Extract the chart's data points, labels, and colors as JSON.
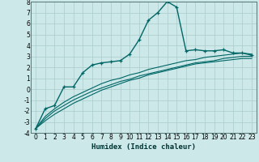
{
  "xlabel": "Humidex (Indice chaleur)",
  "background_color": "#cce8e8",
  "grid_color": "#aacccc",
  "line_color": "#006666",
  "xlim": [
    -0.5,
    23.5
  ],
  "ylim": [
    -4,
    8
  ],
  "xticks": [
    0,
    1,
    2,
    3,
    4,
    5,
    6,
    7,
    8,
    9,
    10,
    11,
    12,
    13,
    14,
    15,
    16,
    17,
    18,
    19,
    20,
    21,
    22,
    23
  ],
  "yticks": [
    -4,
    -3,
    -2,
    -1,
    0,
    1,
    2,
    3,
    4,
    5,
    6,
    7,
    8
  ],
  "series": [
    {
      "x": [
        0,
        1,
        2,
        3,
        4,
        5,
        6,
        7,
        8,
        9,
        10,
        11,
        12,
        13,
        14,
        15,
        16,
        17,
        18,
        19,
        20,
        21,
        22,
        23
      ],
      "y": [
        -3.6,
        -1.8,
        -1.5,
        0.2,
        0.2,
        1.5,
        2.2,
        2.4,
        2.5,
        2.6,
        3.2,
        4.5,
        6.3,
        7.0,
        8.0,
        7.5,
        3.5,
        3.6,
        3.5,
        3.5,
        3.6,
        3.3,
        3.3,
        3.1
      ],
      "marker": true,
      "lw": 1.0
    },
    {
      "x": [
        0,
        1,
        2,
        3,
        4,
        5,
        6,
        7,
        8,
        9,
        10,
        11,
        12,
        13,
        14,
        15,
        16,
        17,
        18,
        19,
        20,
        21,
        22,
        23
      ],
      "y": [
        -3.6,
        -2.5,
        -1.8,
        -1.2,
        -0.7,
        -0.3,
        0.1,
        0.5,
        0.8,
        1.0,
        1.3,
        1.5,
        1.8,
        2.0,
        2.2,
        2.4,
        2.6,
        2.7,
        2.9,
        3.0,
        3.1,
        3.2,
        3.3,
        3.2
      ],
      "marker": false,
      "lw": 0.8
    },
    {
      "x": [
        0,
        1,
        2,
        3,
        4,
        5,
        6,
        7,
        8,
        9,
        10,
        11,
        12,
        13,
        14,
        15,
        16,
        17,
        18,
        19,
        20,
        21,
        22,
        23
      ],
      "y": [
        -3.6,
        -2.7,
        -2.0,
        -1.5,
        -1.0,
        -0.6,
        -0.2,
        0.1,
        0.4,
        0.7,
        0.9,
        1.2,
        1.4,
        1.6,
        1.8,
        2.0,
        2.2,
        2.4,
        2.5,
        2.6,
        2.8,
        2.9,
        3.0,
        3.0
      ],
      "marker": false,
      "lw": 0.8
    },
    {
      "x": [
        0,
        1,
        2,
        3,
        4,
        5,
        6,
        7,
        8,
        9,
        10,
        11,
        12,
        13,
        14,
        15,
        16,
        17,
        18,
        19,
        20,
        21,
        22,
        23
      ],
      "y": [
        -3.6,
        -2.9,
        -2.3,
        -1.8,
        -1.3,
        -0.9,
        -0.5,
        -0.1,
        0.2,
        0.5,
        0.8,
        1.0,
        1.3,
        1.5,
        1.7,
        1.9,
        2.1,
        2.3,
        2.4,
        2.5,
        2.6,
        2.7,
        2.8,
        2.8
      ],
      "marker": false,
      "lw": 0.8
    }
  ]
}
